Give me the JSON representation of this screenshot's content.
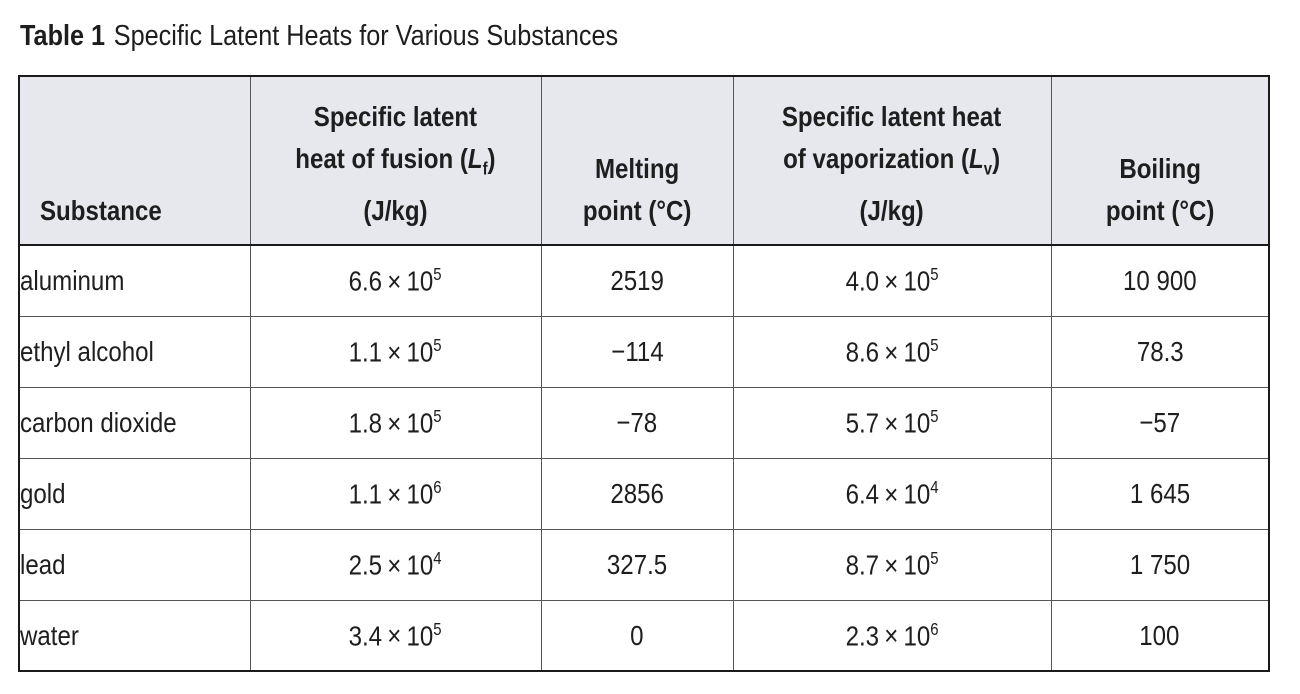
{
  "caption": {
    "label": "Table 1",
    "title": "Specific Latent Heats for Various Substances"
  },
  "table": {
    "headers": {
      "substance": "Substance",
      "fusion": {
        "line1": "Specific latent",
        "line2_pre": "heat of fusion (",
        "symbol": "L",
        "subscript": "f",
        "line2_post": ")",
        "unit": "(J/kg)"
      },
      "melting": {
        "line1": "Melting",
        "line2": "point (°C)"
      },
      "vaporization": {
        "line1": "Specific latent heat",
        "line2_pre": "of vaporization (",
        "symbol": "L",
        "subscript": "v",
        "line2_post": ")",
        "unit": "(J/kg)"
      },
      "boiling": {
        "line1": "Boiling",
        "line2": "point (°C)"
      }
    },
    "rows": [
      {
        "substance": "aluminum",
        "fusion_mantissa": "6.6",
        "fusion_exp": "5",
        "melting": "2519",
        "vap_mantissa": "4.0",
        "vap_exp": "5",
        "boiling": "10 900"
      },
      {
        "substance": "ethyl alcohol",
        "fusion_mantissa": "1.1",
        "fusion_exp": "5",
        "melting": "−114",
        "vap_mantissa": "8.6",
        "vap_exp": "5",
        "boiling": "78.3"
      },
      {
        "substance": "carbon dioxide",
        "fusion_mantissa": "1.8",
        "fusion_exp": "5",
        "melting": "−78",
        "vap_mantissa": "5.7",
        "vap_exp": "5",
        "boiling": "−57"
      },
      {
        "substance": "gold",
        "fusion_mantissa": "1.1",
        "fusion_exp": "6",
        "melting": "2856",
        "vap_mantissa": "6.4",
        "vap_exp": "4",
        "boiling": "1 645"
      },
      {
        "substance": "lead",
        "fusion_mantissa": "2.5",
        "fusion_exp": "4",
        "melting": "327.5",
        "vap_mantissa": "8.7",
        "vap_exp": "5",
        "boiling": "1 750"
      },
      {
        "substance": "water",
        "fusion_mantissa": "3.4",
        "fusion_exp": "5",
        "melting": "0",
        "vap_mantissa": "2.3",
        "vap_exp": "6",
        "boiling": "100"
      }
    ],
    "times_symbol": "×",
    "base": "10"
  }
}
